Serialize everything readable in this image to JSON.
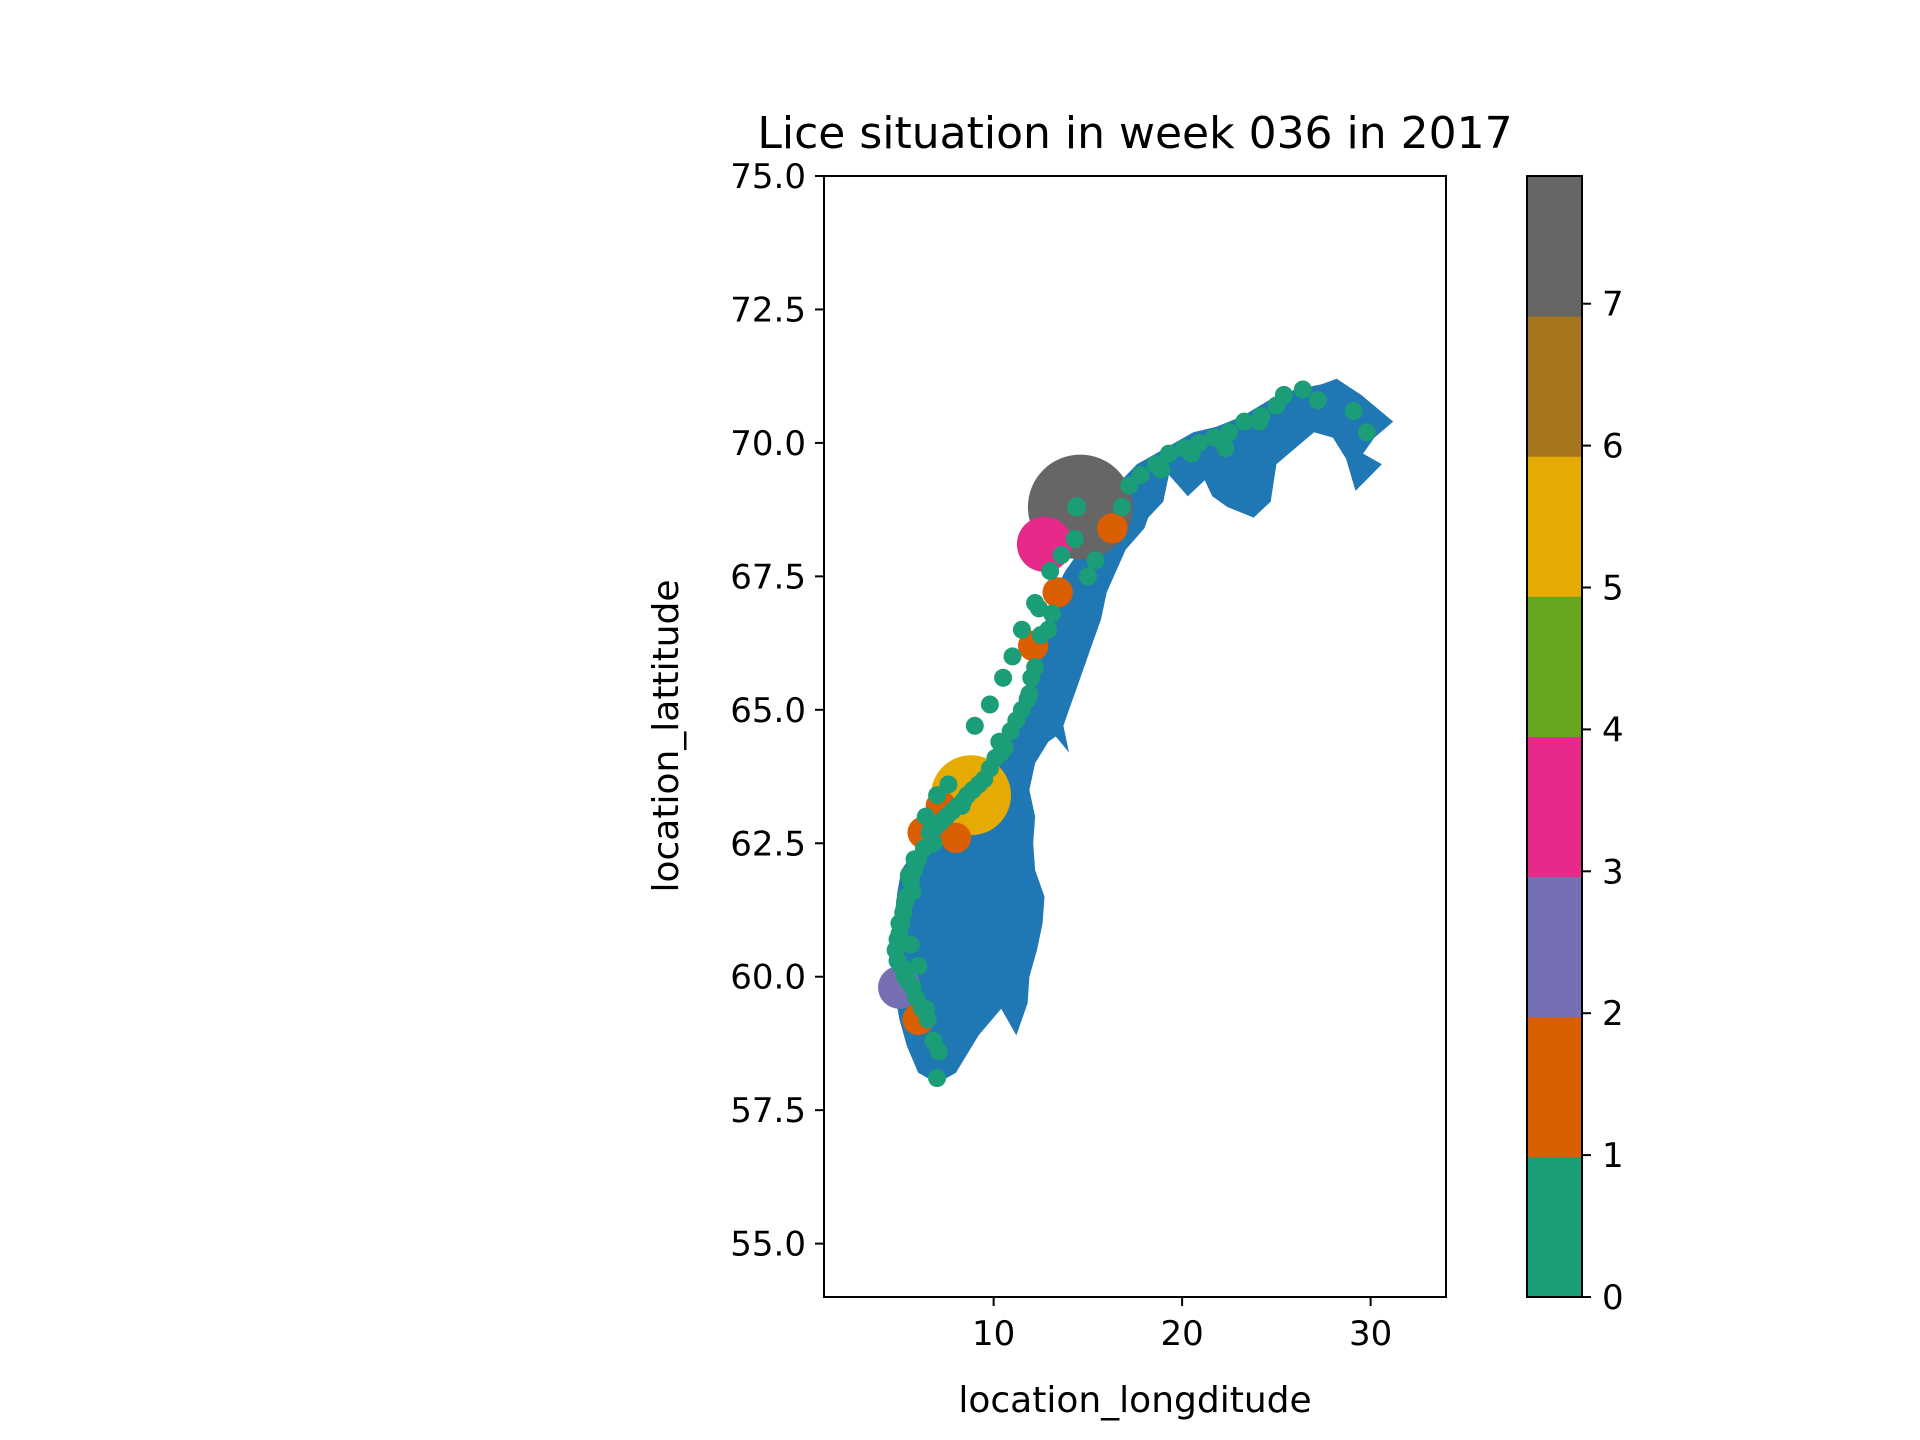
{
  "chart_data": {
    "type": "scatter",
    "title": "Lice situation in week 036 in 2017",
    "xlabel": "location_longditude",
    "ylabel": "location_lattitude",
    "xlim": [
      1,
      34
    ],
    "ylim": [
      54,
      75
    ],
    "xticks": [
      10,
      20,
      30
    ],
    "xtick_labels": [
      "10",
      "20",
      "30"
    ],
    "yticks": [
      55.0,
      57.5,
      60.0,
      62.5,
      65.0,
      67.5,
      70.0,
      72.5,
      75.0
    ],
    "ytick_labels": [
      "55.0",
      "57.5",
      "60.0",
      "62.5",
      "65.0",
      "67.5",
      "70.0",
      "72.5",
      "75.0"
    ],
    "map_fill_color": "#1f77b4",
    "norway_outline": [
      [
        7.0,
        58.0
      ],
      [
        6.0,
        58.2
      ],
      [
        5.4,
        58.7
      ],
      [
        5.0,
        59.2
      ],
      [
        4.7,
        59.8
      ],
      [
        4.8,
        60.4
      ],
      [
        4.7,
        61.0
      ],
      [
        4.9,
        61.6
      ],
      [
        5.1,
        62.0
      ],
      [
        5.7,
        62.3
      ],
      [
        6.6,
        62.6
      ],
      [
        7.4,
        63.0
      ],
      [
        8.2,
        63.4
      ],
      [
        9.2,
        63.6
      ],
      [
        10.2,
        64.0
      ],
      [
        11.2,
        64.8
      ],
      [
        12.0,
        65.4
      ],
      [
        12.2,
        66.0
      ],
      [
        12.7,
        66.6
      ],
      [
        13.2,
        67.2
      ],
      [
        13.8,
        67.6
      ],
      [
        14.6,
        68.0
      ],
      [
        15.3,
        68.4
      ],
      [
        15.8,
        68.9
      ],
      [
        16.5,
        69.2
      ],
      [
        17.6,
        69.6
      ],
      [
        18.6,
        69.8
      ],
      [
        19.6,
        70.0
      ],
      [
        20.6,
        70.2
      ],
      [
        21.8,
        70.3
      ],
      [
        23.2,
        70.5
      ],
      [
        24.6,
        70.8
      ],
      [
        26.0,
        71.0
      ],
      [
        27.4,
        71.1
      ],
      [
        28.2,
        71.2
      ],
      [
        29.5,
        70.9
      ],
      [
        31.2,
        70.4
      ],
      [
        30.2,
        70.1
      ],
      [
        29.6,
        69.8
      ],
      [
        30.6,
        69.6
      ],
      [
        29.2,
        69.1
      ],
      [
        28.7,
        69.7
      ],
      [
        28.0,
        70.1
      ],
      [
        27.0,
        70.2
      ],
      [
        26.0,
        69.9
      ],
      [
        25.0,
        69.6
      ],
      [
        24.7,
        68.9
      ],
      [
        23.8,
        68.6
      ],
      [
        22.4,
        68.8
      ],
      [
        21.6,
        69.0
      ],
      [
        21.2,
        69.3
      ],
      [
        20.3,
        69.0
      ],
      [
        19.3,
        69.4
      ],
      [
        19.0,
        68.9
      ],
      [
        18.2,
        68.6
      ],
      [
        18.0,
        68.4
      ],
      [
        17.0,
        68.0
      ],
      [
        16.5,
        67.6
      ],
      [
        16.0,
        67.2
      ],
      [
        15.7,
        66.7
      ],
      [
        15.2,
        66.2
      ],
      [
        14.5,
        65.5
      ],
      [
        14.0,
        65.0
      ],
      [
        13.7,
        64.7
      ],
      [
        14.0,
        64.2
      ],
      [
        13.3,
        64.5
      ],
      [
        12.9,
        64.4
      ],
      [
        12.2,
        64.0
      ],
      [
        11.9,
        63.5
      ],
      [
        12.2,
        63.0
      ],
      [
        12.1,
        62.5
      ],
      [
        12.2,
        62.0
      ],
      [
        12.7,
        61.5
      ],
      [
        12.6,
        61.0
      ],
      [
        12.3,
        60.5
      ],
      [
        11.9,
        60.0
      ],
      [
        11.8,
        59.5
      ],
      [
        11.2,
        58.9
      ],
      [
        10.4,
        59.4
      ],
      [
        9.2,
        58.9
      ],
      [
        8.0,
        58.2
      ]
    ],
    "series": [
      {
        "name": "locations",
        "x": [
          14.6,
          12.7,
          6.3,
          5.0,
          6.0,
          13.4,
          16.3,
          12.1,
          8.8,
          8.0,
          7.2,
          16.8,
          15.4,
          14.4,
          13.1,
          12.9,
          12.5,
          12.2,
          12.0,
          11.8,
          11.5,
          11.2,
          10.9,
          10.6,
          10.4,
          10.1,
          9.8,
          9.5,
          9.2,
          8.9,
          8.6,
          8.4,
          8.1,
          7.8,
          7.5,
          7.2,
          6.9,
          6.6,
          6.3,
          6.0,
          5.8,
          5.6,
          5.4,
          5.2,
          5.1,
          5.0,
          4.9,
          4.8,
          4.9,
          5.1,
          5.3,
          5.5,
          5.7,
          5.9,
          6.2,
          6.5,
          6.8,
          7.1,
          7.0,
          17.2,
          17.8,
          18.6,
          19.3,
          20.1,
          20.9,
          21.7,
          22.5,
          23.3,
          24.2,
          25.0,
          25.4,
          26.4,
          27.2,
          29.1,
          29.8,
          24.1,
          22.3,
          20.5,
          18.9,
          13.6,
          13.0,
          12.2,
          11.5,
          11.0,
          10.5,
          9.8,
          9.0,
          7.6,
          7.0,
          6.4,
          5.8,
          5.5,
          5.3,
          5.0,
          5.6,
          6.0,
          6.4,
          12.4,
          15.0,
          14.3,
          11.9,
          10.3,
          8.3,
          6.8,
          5.7
        ],
        "y": [
          68.8,
          68.1,
          62.7,
          59.8,
          59.2,
          67.2,
          68.4,
          66.2,
          63.4,
          62.6,
          63.2,
          68.8,
          67.8,
          68.8,
          66.8,
          66.5,
          66.4,
          65.8,
          65.6,
          65.2,
          65.0,
          64.8,
          64.6,
          64.3,
          64.2,
          64.1,
          63.9,
          63.7,
          63.6,
          63.5,
          63.4,
          63.3,
          63.2,
          63.1,
          63.0,
          62.9,
          62.8,
          62.7,
          62.4,
          62.2,
          62.0,
          61.8,
          61.5,
          61.2,
          61.0,
          60.8,
          60.7,
          60.5,
          60.3,
          60.2,
          60.0,
          59.9,
          59.8,
          59.6,
          59.4,
          59.2,
          58.8,
          58.6,
          58.1,
          69.2,
          69.4,
          69.6,
          69.8,
          69.9,
          70.0,
          70.1,
          70.2,
          70.4,
          70.5,
          70.7,
          70.9,
          71.0,
          70.8,
          70.6,
          70.2,
          70.4,
          69.9,
          69.8,
          69.5,
          67.9,
          67.6,
          67.0,
          66.5,
          66.0,
          65.6,
          65.1,
          64.7,
          63.6,
          63.4,
          63.0,
          62.2,
          61.9,
          61.4,
          61.0,
          60.6,
          60.2,
          59.4,
          66.9,
          67.5,
          68.2,
          65.3,
          64.4,
          63.2,
          62.5,
          61.6
        ],
        "lice_level": [
          7.0,
          3.0,
          1.2,
          2.0,
          1.1,
          1.0,
          1.0,
          1.0,
          5.0,
          1.0,
          1.0,
          0.0,
          0.0,
          0.1,
          0.0,
          0.0,
          0.0,
          0.0,
          0.0,
          0.0,
          0.0,
          0.0,
          0.0,
          0.0,
          0.0,
          0.0,
          0.0,
          0.0,
          0.0,
          0.0,
          0.0,
          0.0,
          0.0,
          0.0,
          0.0,
          0.0,
          0.0,
          0.0,
          0.0,
          0.0,
          0.0,
          0.0,
          0.0,
          0.0,
          0.0,
          0.0,
          0.0,
          0.0,
          0.0,
          0.0,
          0.0,
          0.0,
          0.0,
          0.0,
          0.0,
          0.0,
          0.0,
          0.0,
          0.0,
          0.0,
          0.0,
          0.0,
          0.0,
          0.0,
          0.0,
          0.0,
          0.0,
          0.0,
          0.0,
          0.0,
          0.0,
          0.0,
          0.0,
          0.0,
          0.0,
          0.0,
          0.0,
          0.0,
          0.0,
          0.0,
          0.0,
          0.0,
          0.0,
          0.0,
          0.0,
          0.0,
          0.0,
          0.0,
          0.0,
          0.0,
          0.0,
          0.0,
          0.0,
          0.0,
          0.0,
          0.0,
          0.0,
          0.0,
          0.0,
          0.0,
          0.0,
          0.0,
          0.0,
          0.0,
          0.0
        ]
      }
    ],
    "colorbar": {
      "colormap": "Dark2",
      "range": [
        0,
        7.9
      ],
      "colors": [
        "#1b9e77",
        "#d95f02",
        "#7570b3",
        "#e7298a",
        "#66a61e",
        "#e6ab02",
        "#a6761d",
        "#666666"
      ],
      "ticks": [
        0,
        1,
        2,
        3,
        4,
        5,
        6,
        7
      ],
      "tick_labels": [
        "0",
        "1",
        "2",
        "3",
        "4",
        "5",
        "6",
        "7"
      ]
    }
  }
}
